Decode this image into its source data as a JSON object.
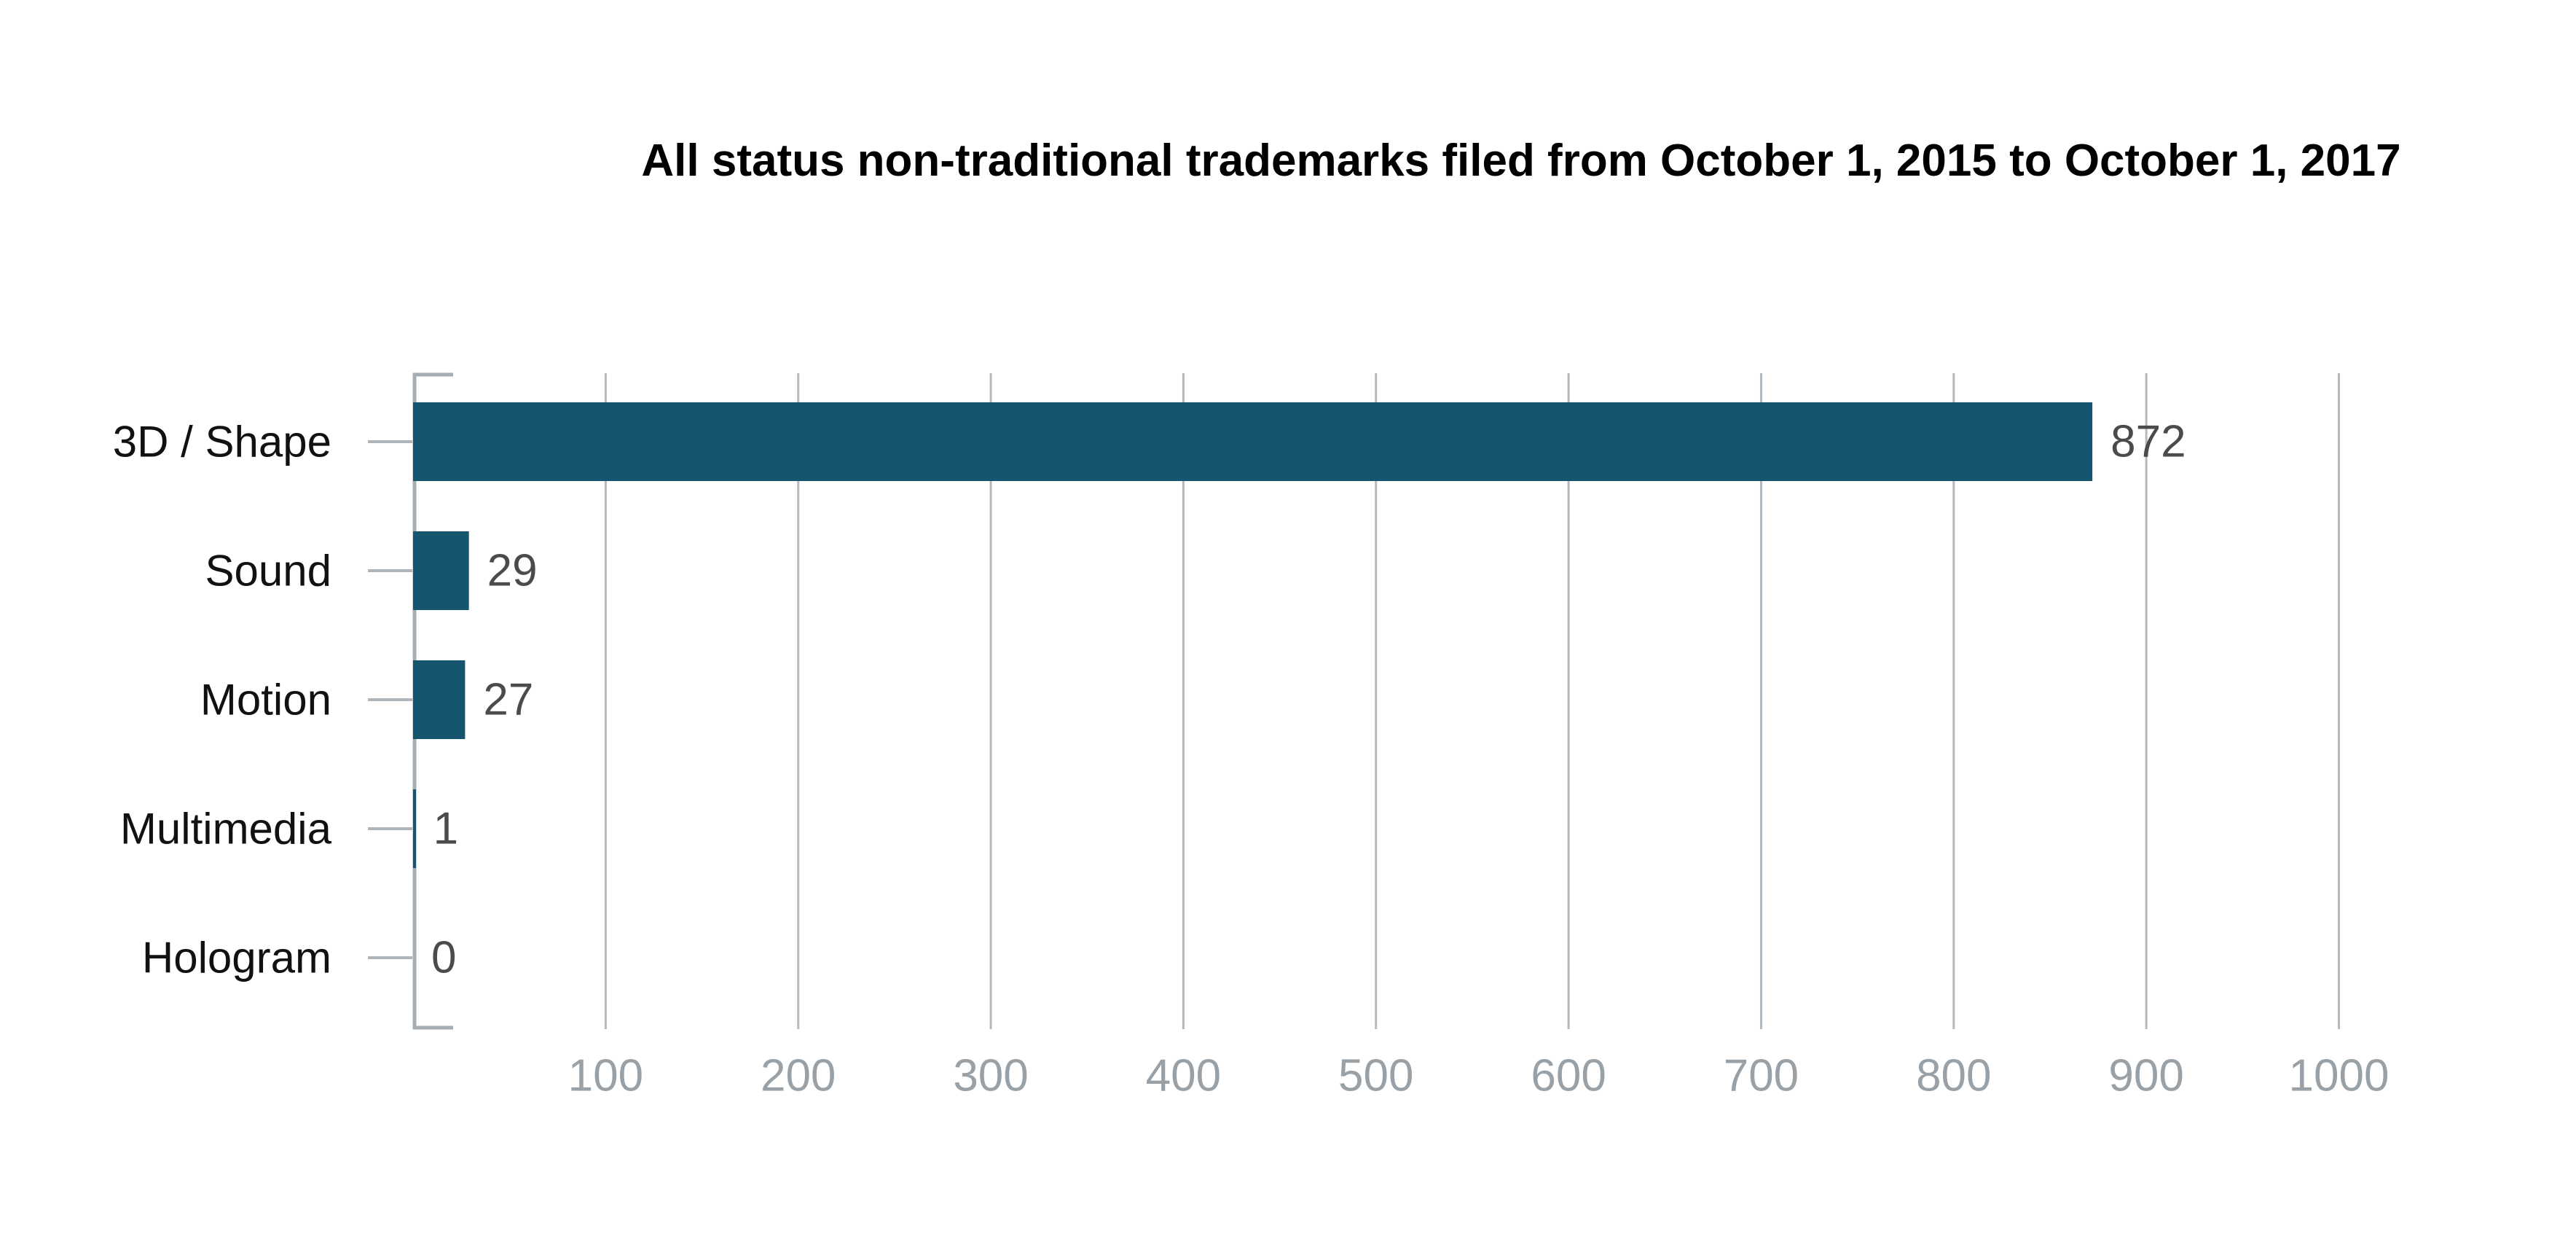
{
  "title": "All status non-traditional trademarks filed from October 1, 2015 to October 1, 2017",
  "chart_data": {
    "type": "bar",
    "orientation": "horizontal",
    "title": "All status non-traditional trademarks filed from October 1, 2015 to October 1, 2017",
    "categories": [
      "3D / Shape",
      "Sound",
      "Motion",
      "Multimedia",
      "Hologram"
    ],
    "values": [
      872,
      29,
      27,
      1,
      0
    ],
    "value_labels": [
      "872",
      "29",
      "27",
      "1",
      "0"
    ],
    "x_ticks": [
      100,
      200,
      300,
      400,
      500,
      600,
      700,
      800,
      900,
      1000
    ],
    "xlim": [
      0,
      1000
    ],
    "xlabel": "",
    "ylabel": "",
    "grid": true,
    "legend": "none",
    "colors": {
      "bar": "#15566e",
      "grid": "#b3babf",
      "axis": "#a6aeb4",
      "category_tick": "#aeb6bb",
      "x_tick_label": "#99a1a7",
      "value_label": "#4b4b4b",
      "category_label": "#111111",
      "title": "#000000",
      "background": "#ffffff"
    }
  }
}
